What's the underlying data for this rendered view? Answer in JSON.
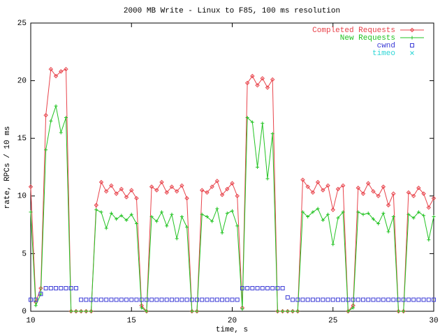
{
  "chart_data": {
    "type": "line",
    "title": "2000 MB Write - Linux to F85, 100 ms resolution",
    "xlabel": "time, s",
    "ylabel": "rate, RPCs / 10 ms",
    "xlim": [
      10,
      30
    ],
    "ylim": [
      0,
      25
    ],
    "xticks": [
      10,
      15,
      20,
      25,
      30
    ],
    "yticks": [
      0,
      5,
      10,
      15,
      20,
      25
    ],
    "legend": "top-right",
    "x": [
      10,
      10.25,
      10.5,
      10.75,
      11,
      11.25,
      11.5,
      11.75,
      12,
      12.25,
      12.5,
      12.75,
      13,
      13.25,
      13.5,
      13.75,
      14,
      14.25,
      14.5,
      14.75,
      15,
      15.25,
      15.5,
      15.75,
      16,
      16.25,
      16.5,
      16.75,
      17,
      17.25,
      17.5,
      17.75,
      18,
      18.25,
      18.5,
      18.75,
      19,
      19.25,
      19.5,
      19.75,
      20,
      20.25,
      20.5,
      20.75,
      21,
      21.25,
      21.5,
      21.75,
      22,
      22.25,
      22.5,
      22.75,
      23,
      23.25,
      23.5,
      23.75,
      24,
      24.25,
      24.5,
      24.75,
      25,
      25.25,
      25.5,
      25.75,
      26,
      26.25,
      26.5,
      26.75,
      27,
      27.25,
      27.5,
      27.75,
      28,
      28.25,
      28.5,
      28.75,
      29,
      29.25,
      29.5,
      29.75,
      30
    ],
    "series": [
      {
        "name": "Completed Requests",
        "color": "#e8434b",
        "line": true,
        "marker": "diamond",
        "values": [
          10.8,
          0.8,
          2,
          17,
          21,
          20.4,
          20.8,
          21,
          0,
          0,
          0,
          0,
          0,
          9.2,
          11.2,
          10.4,
          10.9,
          10.2,
          10.6,
          9.9,
          10.5,
          9.8,
          0.5,
          0,
          10.8,
          10.5,
          11.2,
          10.3,
          10.8,
          10.4,
          10.9,
          9.8,
          0,
          0,
          10.5,
          10.3,
          10.8,
          11.3,
          10.1,
          10.6,
          11.1,
          10,
          0.3,
          19.8,
          20.4,
          19.6,
          20.2,
          19.4,
          20.1,
          0,
          0,
          0,
          0,
          0,
          11.4,
          10.8,
          10.3,
          11.2,
          10.5,
          10.9,
          8.8,
          10.6,
          10.9,
          0,
          0.5,
          10.7,
          10.2,
          11.1,
          10.4,
          10,
          10.8,
          9.2,
          10.2,
          0,
          0,
          10.3,
          10,
          10.7,
          10.2,
          9,
          9.8
        ]
      },
      {
        "name": "New Requests",
        "color": "#22c322",
        "line": true,
        "marker": "plus",
        "values": [
          8.6,
          0.5,
          1.5,
          14,
          16.5,
          17.8,
          15.5,
          16.8,
          0,
          0,
          0,
          0,
          0,
          8.8,
          8.6,
          7.2,
          8.5,
          8,
          8.3,
          7.9,
          8.4,
          7.6,
          0.3,
          0,
          8.2,
          7.8,
          8.6,
          7.4,
          8.4,
          6.3,
          8.2,
          7.3,
          0,
          0,
          8.4,
          8.2,
          7.8,
          8.9,
          6.8,
          8.5,
          8.7,
          7.4,
          0.2,
          16.8,
          16.4,
          12.5,
          16.3,
          11.5,
          15.4,
          0,
          0,
          0,
          0,
          0,
          8.6,
          8.2,
          8.6,
          8.9,
          7.9,
          8.4,
          5.8,
          8.1,
          8.6,
          0,
          0.3,
          8.6,
          8.4,
          8.5,
          8,
          7.6,
          8.5,
          6.9,
          8.2,
          0,
          0,
          8.4,
          8.1,
          8.6,
          8.3,
          6.2,
          8.2
        ]
      },
      {
        "name": "cwnd",
        "color": "#3a3ad6",
        "line": false,
        "marker": "square",
        "values": [
          1,
          1,
          1.5,
          2,
          2,
          2,
          2,
          2,
          2,
          2,
          1,
          1,
          1,
          1,
          1,
          1,
          1,
          1,
          1,
          1,
          1,
          1,
          1,
          1,
          1,
          1,
          1,
          1,
          1,
          1,
          1,
          1,
          1,
          1,
          1,
          1,
          1,
          1,
          1,
          1,
          1,
          1,
          2,
          2,
          2,
          2,
          2,
          2,
          2,
          2,
          2,
          1.2,
          1,
          1,
          1,
          1,
          1,
          1,
          1,
          1,
          1,
          1,
          1,
          1,
          1,
          1,
          1,
          1,
          1,
          1,
          1,
          1,
          1,
          1,
          1,
          1,
          1,
          1,
          1,
          1,
          1
        ]
      },
      {
        "name": "timeo",
        "color": "#2ed6d6",
        "line": false,
        "marker": "cross",
        "values": [
          null,
          null,
          null,
          null,
          null,
          null,
          null,
          null,
          null,
          null,
          null,
          null,
          null,
          null,
          null,
          null,
          null,
          null,
          null,
          null,
          null,
          null,
          null,
          null,
          null,
          null,
          null,
          null,
          null,
          null,
          null,
          null,
          null,
          null,
          null,
          null,
          null,
          null,
          null,
          null,
          null,
          null,
          null,
          null,
          null,
          null,
          null,
          null,
          null,
          null,
          null,
          null,
          null,
          null,
          null,
          null,
          null,
          null,
          null,
          null,
          null,
          null,
          null,
          null,
          null,
          null,
          null,
          null,
          null,
          null,
          null,
          null,
          null,
          null,
          null,
          null,
          null,
          null,
          null,
          null,
          null
        ]
      }
    ]
  }
}
